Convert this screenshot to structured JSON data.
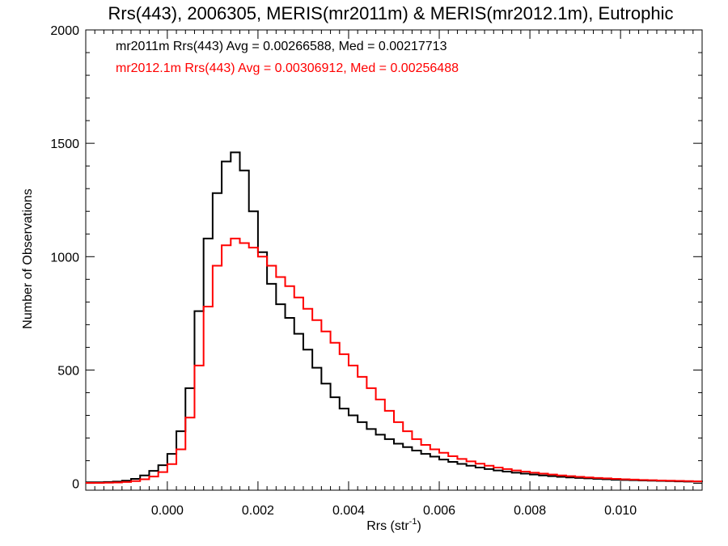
{
  "chart_data": {
    "type": "line",
    "title": "Rrs(443), 2006305, MERIS(mr2011m) & MERIS(mr2012.1m), Eutrophic",
    "xlabel": "Rrs (str",
    "xlabel_sup": "-1",
    "xlabel_close": ")",
    "ylabel": "Number of Observations",
    "xlim": [
      -0.0018,
      0.0118
    ],
    "ylim": [
      -30,
      2000
    ],
    "xticks": [
      0.0,
      0.002,
      0.004,
      0.006,
      0.008,
      0.01
    ],
    "xtick_labels": [
      "0.000",
      "0.002",
      "0.004",
      "0.006",
      "0.008",
      "0.010"
    ],
    "yticks": [
      0,
      500,
      1000,
      1500,
      2000
    ],
    "ytick_labels": [
      "0",
      "500",
      "1000",
      "1500",
      "2000"
    ],
    "grid": false,
    "legend_position": "top-left",
    "series": [
      {
        "name": "mr2011m Rrs(443) Avg = 0.00266588, Med = 0.00217713",
        "color": "#000000",
        "x": [
          -0.0018,
          -0.0016,
          -0.0014,
          -0.0012,
          -0.001,
          -0.0008,
          -0.0006,
          -0.0004,
          -0.0002,
          0.0,
          0.0002,
          0.0004,
          0.0006,
          0.0008,
          0.001,
          0.0012,
          0.0014,
          0.0016,
          0.0018,
          0.002,
          0.0022,
          0.0024,
          0.0026,
          0.0028,
          0.003,
          0.0032,
          0.0034,
          0.0036,
          0.0038,
          0.004,
          0.0042,
          0.0044,
          0.0046,
          0.0048,
          0.005,
          0.0052,
          0.0054,
          0.0056,
          0.0058,
          0.006,
          0.0062,
          0.0064,
          0.0066,
          0.0068,
          0.007,
          0.0072,
          0.0074,
          0.0076,
          0.0078,
          0.008,
          0.0082,
          0.0084,
          0.0086,
          0.0088,
          0.009,
          0.0092,
          0.0094,
          0.0096,
          0.0098,
          0.01,
          0.0102,
          0.0104,
          0.0106,
          0.0108,
          0.011,
          0.0112,
          0.0114,
          0.0116,
          0.0118
        ],
        "values": [
          5,
          5,
          6,
          8,
          12,
          20,
          35,
          55,
          80,
          130,
          230,
          420,
          760,
          1080,
          1280,
          1420,
          1460,
          1380,
          1200,
          1020,
          880,
          790,
          730,
          660,
          590,
          510,
          440,
          380,
          330,
          300,
          270,
          240,
          215,
          195,
          175,
          160,
          145,
          130,
          118,
          105,
          95,
          86,
          78,
          70,
          63,
          57,
          52,
          47,
          43,
          39,
          35,
          32,
          29,
          26,
          24,
          22,
          20,
          18,
          16,
          15,
          14,
          13,
          12,
          11,
          10,
          9,
          8,
          8,
          7
        ]
      },
      {
        "name": "mr2012.1m Rrs(443) Avg = 0.00306912, Med = 0.00256488",
        "color": "#ff0000",
        "x": [
          -0.0018,
          -0.0016,
          -0.0014,
          -0.0012,
          -0.001,
          -0.0008,
          -0.0006,
          -0.0004,
          -0.0002,
          0.0,
          0.0002,
          0.0004,
          0.0006,
          0.0008,
          0.001,
          0.0012,
          0.0014,
          0.0016,
          0.0018,
          0.002,
          0.0022,
          0.0024,
          0.0026,
          0.0028,
          0.003,
          0.0032,
          0.0034,
          0.0036,
          0.0038,
          0.004,
          0.0042,
          0.0044,
          0.0046,
          0.0048,
          0.005,
          0.0052,
          0.0054,
          0.0056,
          0.0058,
          0.006,
          0.0062,
          0.0064,
          0.0066,
          0.0068,
          0.007,
          0.0072,
          0.0074,
          0.0076,
          0.0078,
          0.008,
          0.0082,
          0.0084,
          0.0086,
          0.0088,
          0.009,
          0.0092,
          0.0094,
          0.0096,
          0.0098,
          0.01,
          0.0102,
          0.0104,
          0.0106,
          0.0108,
          0.011,
          0.0112,
          0.0114,
          0.0116,
          0.0118
        ],
        "values": [
          2,
          2,
          3,
          4,
          6,
          10,
          18,
          30,
          50,
          85,
          150,
          290,
          520,
          780,
          960,
          1050,
          1080,
          1060,
          1040,
          1000,
          960,
          910,
          870,
          820,
          770,
          720,
          670,
          620,
          570,
          520,
          470,
          420,
          370,
          320,
          270,
          230,
          195,
          170,
          150,
          135,
          120,
          108,
          97,
          87,
          78,
          70,
          63,
          57,
          52,
          47,
          43,
          39,
          35,
          32,
          29,
          26,
          24,
          22,
          20,
          18,
          17,
          15,
          14,
          13,
          12,
          11,
          10,
          9,
          9
        ]
      }
    ]
  }
}
